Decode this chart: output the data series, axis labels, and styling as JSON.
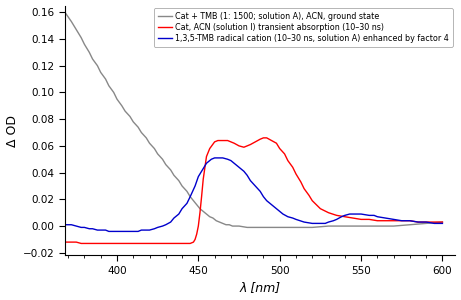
{
  "title": "",
  "xlabel": "λ [nm]",
  "ylabel": "Δ OD",
  "xlim": [
    368,
    608
  ],
  "ylim": [
    -0.022,
    0.165
  ],
  "yticks": [
    -0.02,
    0.0,
    0.02,
    0.04,
    0.06,
    0.08,
    0.1,
    0.12,
    0.14,
    0.16
  ],
  "xticks": [
    400,
    450,
    500,
    550,
    600
  ],
  "legend": [
    "Cat + TMB (1: 1500; solution A), ACN, ground state",
    "Cat, ACN (solution I) transient absorption (10–30 ns)",
    "1,3,5-TMB radical cation (10–30 ns, solution A) enhanced by factor 4"
  ],
  "line_colors": [
    "#888888",
    "#ff0000",
    "#0000cc"
  ],
  "background_color": "#ffffff",
  "gray_curve": {
    "x": [
      368,
      372,
      375,
      378,
      380,
      383,
      385,
      388,
      390,
      393,
      395,
      398,
      400,
      403,
      405,
      408,
      410,
      413,
      415,
      418,
      420,
      423,
      425,
      428,
      430,
      433,
      435,
      438,
      440,
      443,
      445,
      447,
      449,
      451,
      453,
      455,
      457,
      459,
      461,
      463,
      465,
      467,
      469,
      471,
      473,
      475,
      480,
      485,
      490,
      495,
      500,
      510,
      520,
      530,
      540,
      550,
      560,
      570,
      580,
      590,
      600
    ],
    "y": [
      0.16,
      0.153,
      0.147,
      0.141,
      0.136,
      0.13,
      0.125,
      0.12,
      0.115,
      0.11,
      0.105,
      0.1,
      0.095,
      0.09,
      0.086,
      0.082,
      0.078,
      0.074,
      0.07,
      0.066,
      0.062,
      0.058,
      0.054,
      0.05,
      0.046,
      0.042,
      0.038,
      0.034,
      0.03,
      0.026,
      0.022,
      0.019,
      0.016,
      0.013,
      0.011,
      0.009,
      0.007,
      0.006,
      0.004,
      0.003,
      0.002,
      0.001,
      0.001,
      0.0,
      0.0,
      0.0,
      -0.001,
      -0.001,
      -0.001,
      -0.001,
      -0.001,
      -0.001,
      -0.001,
      0.0,
      0.0,
      0.0,
      0.0,
      0.0,
      0.001,
      0.002,
      0.003
    ]
  },
  "red_curve": {
    "x": [
      368,
      372,
      375,
      378,
      380,
      383,
      385,
      388,
      390,
      393,
      395,
      398,
      400,
      405,
      410,
      415,
      420,
      425,
      430,
      435,
      440,
      443,
      445,
      447,
      448,
      449,
      450,
      451,
      452,
      453,
      455,
      457,
      460,
      462,
      465,
      468,
      470,
      472,
      475,
      478,
      480,
      482,
      485,
      488,
      490,
      492,
      495,
      498,
      500,
      503,
      505,
      508,
      510,
      513,
      515,
      518,
      520,
      525,
      530,
      535,
      540,
      545,
      550,
      555,
      560,
      565,
      570,
      575,
      580,
      585,
      590,
      595,
      600
    ],
    "y": [
      -0.012,
      -0.012,
      -0.012,
      -0.013,
      -0.013,
      -0.013,
      -0.013,
      -0.013,
      -0.013,
      -0.013,
      -0.013,
      -0.013,
      -0.013,
      -0.013,
      -0.013,
      -0.013,
      -0.013,
      -0.013,
      -0.013,
      -0.013,
      -0.013,
      -0.013,
      -0.013,
      -0.012,
      -0.01,
      -0.006,
      0.0,
      0.01,
      0.022,
      0.035,
      0.052,
      0.058,
      0.063,
      0.064,
      0.064,
      0.064,
      0.063,
      0.062,
      0.06,
      0.059,
      0.06,
      0.061,
      0.063,
      0.065,
      0.066,
      0.066,
      0.064,
      0.062,
      0.058,
      0.054,
      0.049,
      0.044,
      0.039,
      0.033,
      0.028,
      0.023,
      0.019,
      0.013,
      0.01,
      0.008,
      0.007,
      0.006,
      0.005,
      0.005,
      0.004,
      0.004,
      0.004,
      0.004,
      0.004,
      0.003,
      0.003,
      0.003,
      0.003
    ]
  },
  "blue_curve": {
    "x": [
      368,
      372,
      375,
      378,
      380,
      383,
      385,
      388,
      390,
      393,
      395,
      398,
      400,
      403,
      405,
      408,
      410,
      413,
      415,
      418,
      420,
      423,
      425,
      428,
      430,
      433,
      435,
      438,
      440,
      443,
      445,
      448,
      450,
      453,
      455,
      458,
      460,
      463,
      465,
      468,
      470,
      472,
      475,
      478,
      480,
      482,
      485,
      488,
      490,
      492,
      495,
      498,
      500,
      502,
      505,
      508,
      510,
      515,
      520,
      525,
      528,
      530,
      533,
      535,
      538,
      540,
      543,
      545,
      548,
      550,
      555,
      558,
      560,
      565,
      570,
      575,
      580,
      585,
      590,
      595,
      600
    ],
    "y": [
      0.001,
      0.001,
      0.0,
      -0.001,
      -0.001,
      -0.002,
      -0.002,
      -0.003,
      -0.003,
      -0.003,
      -0.004,
      -0.004,
      -0.004,
      -0.004,
      -0.004,
      -0.004,
      -0.004,
      -0.004,
      -0.003,
      -0.003,
      -0.003,
      -0.002,
      -0.001,
      0.0,
      0.001,
      0.003,
      0.006,
      0.009,
      0.013,
      0.017,
      0.022,
      0.03,
      0.037,
      0.043,
      0.047,
      0.05,
      0.051,
      0.051,
      0.051,
      0.05,
      0.049,
      0.047,
      0.044,
      0.041,
      0.038,
      0.034,
      0.03,
      0.026,
      0.022,
      0.019,
      0.016,
      0.013,
      0.011,
      0.009,
      0.007,
      0.006,
      0.005,
      0.003,
      0.002,
      0.002,
      0.002,
      0.003,
      0.004,
      0.005,
      0.007,
      0.008,
      0.009,
      0.009,
      0.009,
      0.009,
      0.008,
      0.008,
      0.007,
      0.006,
      0.005,
      0.004,
      0.004,
      0.003,
      0.003,
      0.002,
      0.002
    ]
  }
}
